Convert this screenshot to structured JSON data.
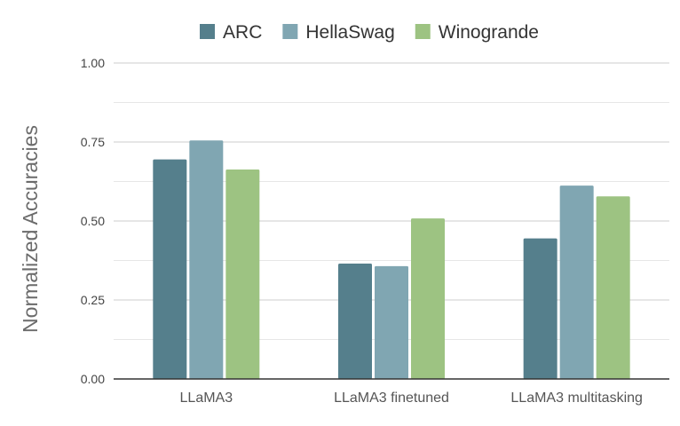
{
  "chart_data": {
    "type": "bar",
    "title": "",
    "xlabel": "",
    "ylabel": "Normalized Accuracies",
    "categories": [
      "LLaMA3",
      "LLaMA3 finetuned",
      "LLaMA3 multitasking"
    ],
    "series": [
      {
        "name": "ARC",
        "color": "#557f8c",
        "values": [
          0.695,
          0.365,
          0.445
        ]
      },
      {
        "name": "HellaSwag",
        "color": "#80a6b2",
        "values": [
          0.755,
          0.357,
          0.612
        ]
      },
      {
        "name": "Winogrande",
        "color": "#9dc382",
        "values": [
          0.663,
          0.508,
          0.578
        ]
      }
    ],
    "ylim": [
      0,
      1
    ],
    "yticks": [
      "0.00",
      "0.25",
      "0.50",
      "0.75",
      "1.00"
    ],
    "legend_position": "top",
    "grid": true
  }
}
